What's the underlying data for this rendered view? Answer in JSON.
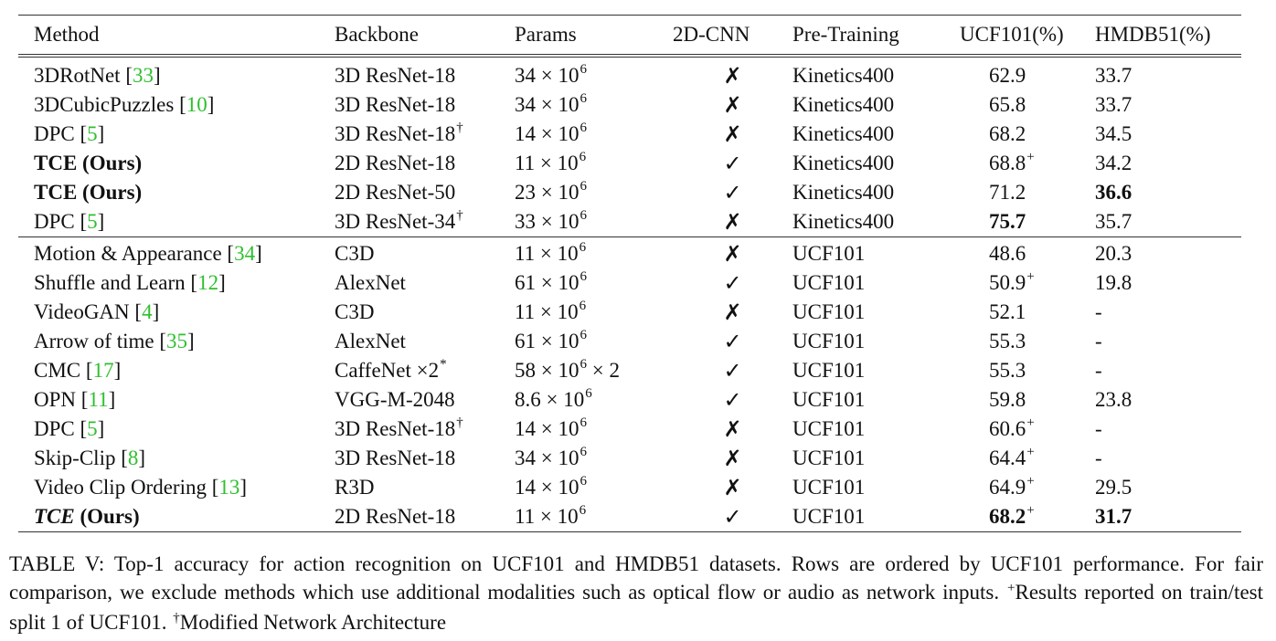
{
  "table": {
    "headers": [
      "Method",
      "Backbone",
      "Params",
      "2D-CNN",
      "Pre-Training",
      "UCF101(%)",
      "HMDB51(%)"
    ],
    "groups": [
      [
        {
          "method": "3DRotNet",
          "method_style": "normal",
          "cite": "33",
          "backbone": "3D ResNet-18",
          "backbone_sup": "",
          "params": "34 × 10",
          "params_exp": "6",
          "params_tail": "",
          "cnn": "✗",
          "pretraining": "Kinetics400",
          "ucf": "62.9",
          "ucf_sup": "",
          "ucf_bold": false,
          "hmdb": "33.7",
          "hmdb_bold": false
        },
        {
          "method": "3DCubicPuzzles",
          "method_style": "normal",
          "cite": "10",
          "backbone": "3D ResNet-18",
          "backbone_sup": "",
          "params": "34 × 10",
          "params_exp": "6",
          "params_tail": "",
          "cnn": "✗",
          "pretraining": "Kinetics400",
          "ucf": "65.8",
          "ucf_sup": "",
          "ucf_bold": false,
          "hmdb": "33.7",
          "hmdb_bold": false
        },
        {
          "method": "DPC",
          "method_style": "normal",
          "cite": "5",
          "backbone": "3D ResNet-18",
          "backbone_sup": "†",
          "params": "14 × 10",
          "params_exp": "6",
          "params_tail": "",
          "cnn": "✗",
          "pretraining": "Kinetics400",
          "ucf": "68.2",
          "ucf_sup": "",
          "ucf_bold": false,
          "hmdb": "34.5",
          "hmdb_bold": false
        },
        {
          "method": "TCE (Ours)",
          "method_style": "bold",
          "cite": "",
          "backbone": "2D ResNet-18",
          "backbone_sup": "",
          "params": "11 × 10",
          "params_exp": "6",
          "params_tail": "",
          "cnn": "✓",
          "pretraining": "Kinetics400",
          "ucf": "68.8",
          "ucf_sup": "+",
          "ucf_bold": false,
          "hmdb": "34.2",
          "hmdb_bold": false
        },
        {
          "method": "TCE (Ours)",
          "method_style": "bold",
          "cite": "",
          "backbone": "2D ResNet-50",
          "backbone_sup": "",
          "params": "23 × 10",
          "params_exp": "6",
          "params_tail": "",
          "cnn": "✓",
          "pretraining": "Kinetics400",
          "ucf": "71.2",
          "ucf_sup": "",
          "ucf_bold": false,
          "hmdb": "36.6",
          "hmdb_bold": true
        },
        {
          "method": "DPC",
          "method_style": "normal",
          "cite": "5",
          "backbone": "3D ResNet-34",
          "backbone_sup": "†",
          "params": "33 × 10",
          "params_exp": "6",
          "params_tail": "",
          "cnn": "✗",
          "pretraining": "Kinetics400",
          "ucf": "75.7",
          "ucf_sup": "",
          "ucf_bold": true,
          "hmdb": "35.7",
          "hmdb_bold": false
        }
      ],
      [
        {
          "method": "Motion & Appearance",
          "method_style": "normal",
          "cite": "34",
          "backbone": "C3D",
          "backbone_sup": "",
          "params": "11 × 10",
          "params_exp": "6",
          "params_tail": "",
          "cnn": "✗",
          "pretraining": "UCF101",
          "ucf": "48.6",
          "ucf_sup": "",
          "ucf_bold": false,
          "hmdb": "20.3",
          "hmdb_bold": false
        },
        {
          "method": "Shuffle and Learn",
          "method_style": "normal",
          "cite": "12",
          "backbone": "AlexNet",
          "backbone_sup": "",
          "params": "61 × 10",
          "params_exp": "6",
          "params_tail": "",
          "cnn": "✓",
          "pretraining": "UCF101",
          "ucf": "50.9",
          "ucf_sup": "+",
          "ucf_bold": false,
          "hmdb": "19.8",
          "hmdb_bold": false
        },
        {
          "method": "VideoGAN",
          "method_style": "normal",
          "cite": "4",
          "backbone": "C3D",
          "backbone_sup": "",
          "params": "11 × 10",
          "params_exp": "6",
          "params_tail": "",
          "cnn": "✗",
          "pretraining": "UCF101",
          "ucf": "52.1",
          "ucf_sup": "",
          "ucf_bold": false,
          "hmdb": "-",
          "hmdb_bold": false
        },
        {
          "method": "Arrow of time",
          "method_style": "normal",
          "cite": "35",
          "backbone": "AlexNet",
          "backbone_sup": "",
          "params": "61 × 10",
          "params_exp": "6",
          "params_tail": "",
          "cnn": "✓",
          "pretraining": "UCF101",
          "ucf": "55.3",
          "ucf_sup": "",
          "ucf_bold": false,
          "hmdb": "-",
          "hmdb_bold": false
        },
        {
          "method": "CMC",
          "method_style": "normal",
          "cite": "17",
          "backbone": "CaffeNet ×2",
          "backbone_sup": "*",
          "params": "58 × 10",
          "params_exp": "6",
          "params_tail": " × 2",
          "cnn": "✓",
          "pretraining": "UCF101",
          "ucf": "55.3",
          "ucf_sup": "",
          "ucf_bold": false,
          "hmdb": "-",
          "hmdb_bold": false
        },
        {
          "method": "OPN",
          "method_style": "normal",
          "cite": "11",
          "backbone": "VGG-M-2048",
          "backbone_sup": "",
          "params": "8.6 × 10",
          "params_exp": "6",
          "params_tail": "",
          "cnn": "✓",
          "pretraining": "UCF101",
          "ucf": "59.8",
          "ucf_sup": "",
          "ucf_bold": false,
          "hmdb": "23.8",
          "hmdb_bold": false
        },
        {
          "method": "DPC",
          "method_style": "normal",
          "cite": "5",
          "backbone": "3D ResNet-18",
          "backbone_sup": "†",
          "params": "14 × 10",
          "params_exp": "6",
          "params_tail": "",
          "cnn": "✗",
          "pretraining": "UCF101",
          "ucf": "60.6",
          "ucf_sup": "+",
          "ucf_bold": false,
          "hmdb": "-",
          "hmdb_bold": false
        },
        {
          "method": "Skip-Clip",
          "method_style": "normal",
          "cite": "8",
          "backbone": "3D ResNet-18",
          "backbone_sup": "",
          "params": "34 × 10",
          "params_exp": "6",
          "params_tail": "",
          "cnn": "✗",
          "pretraining": "UCF101",
          "ucf": "64.4",
          "ucf_sup": "+",
          "ucf_bold": false,
          "hmdb": "-",
          "hmdb_bold": false
        },
        {
          "method": "Video Clip Ordering",
          "method_style": "normal",
          "cite": "13",
          "backbone": "R3D",
          "backbone_sup": "",
          "params": "14 × 10",
          "params_exp": "6",
          "params_tail": "",
          "cnn": "✗",
          "pretraining": "UCF101",
          "ucf": "64.9",
          "ucf_sup": "+",
          "ucf_bold": false,
          "hmdb": "29.5",
          "hmdb_bold": false
        },
        {
          "method": "TCE",
          "method_tail": " (Ours)",
          "method_style": "bold-italic",
          "cite": "",
          "backbone": "2D ResNet-18",
          "backbone_sup": "",
          "params": "11 × 10",
          "params_exp": "6",
          "params_tail": "",
          "cnn": "✓",
          "pretraining": "UCF101",
          "ucf": "68.2",
          "ucf_sup": "+",
          "ucf_bold": true,
          "hmdb": "31.7",
          "hmdb_bold": true
        }
      ]
    ]
  },
  "caption": {
    "part1": "TABLE V: Top-1 accuracy for action recognition on UCF101 and HMDB51 datasets. Rows are ordered by UCF101 performance. For fair comparison, we exclude methods which use additional modalities such as optical flow or audio as network inputs. ",
    "sup_plus": "+",
    "part2": "Results reported on train/test split 1 of UCF101. ",
    "sup_dagger": "†",
    "part3": "Modified Network Architecture"
  }
}
